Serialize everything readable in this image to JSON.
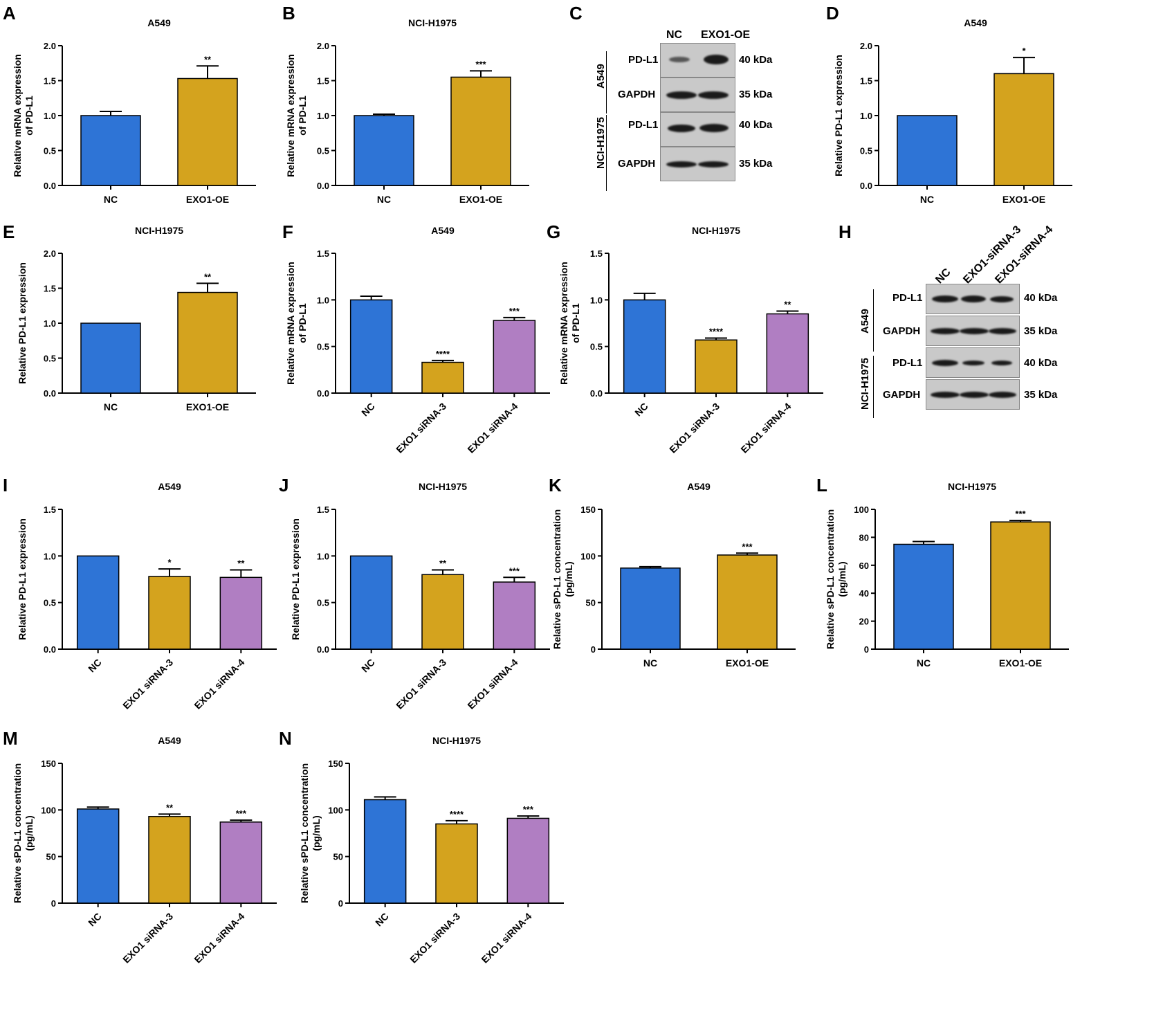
{
  "colors": {
    "blue": "#2e74d6",
    "gold": "#d4a31e",
    "purple": "#b07ec2"
  },
  "panel_letters": [
    "A",
    "B",
    "C",
    "D",
    "E",
    "F",
    "G",
    "H",
    "I",
    "J",
    "K",
    "L",
    "M",
    "N"
  ],
  "blot_C": {
    "lanes": [
      "NC",
      "EXO1-OE"
    ],
    "groups": [
      {
        "cell": "A549",
        "rows": [
          {
            "protein": "PD-L1",
            "size": "40 kDa"
          },
          {
            "protein": "GAPDH",
            "size": "35 kDa"
          }
        ]
      },
      {
        "cell": "NCI-H1975",
        "rows": [
          {
            "protein": "PD-L1",
            "size": "40 kDa"
          },
          {
            "protein": "GAPDH",
            "size": "35 kDa"
          }
        ]
      }
    ]
  },
  "blot_H": {
    "lanes": [
      "NC",
      "EXO1-siRNA-3",
      "EXO1-siRNA-4"
    ],
    "groups": [
      {
        "cell": "A549",
        "rows": [
          {
            "protein": "PD-L1",
            "size": "40 kDa"
          },
          {
            "protein": "GAPDH",
            "size": "35 kDa"
          }
        ]
      },
      {
        "cell": "NCI-H1975",
        "rows": [
          {
            "protein": "PD-L1",
            "size": "40 kDa"
          },
          {
            "protein": "GAPDH",
            "size": "35 kDa"
          }
        ]
      }
    ]
  },
  "chart_data": [
    {
      "id": "A",
      "type": "bar",
      "title": "A549",
      "ylabel": [
        "Relative mRNA expression",
        "of PD-L1"
      ],
      "categories": [
        "NC",
        "EXO1-OE"
      ],
      "values": [
        1.0,
        1.53
      ],
      "errors": [
        0.06,
        0.18
      ],
      "sig": [
        "",
        "**"
      ],
      "ylim": [
        0,
        2.0
      ],
      "yticks": [
        "0.0",
        "0.5",
        "1.0",
        "1.5",
        "2.0"
      ],
      "rotate": false
    },
    {
      "id": "B",
      "type": "bar",
      "title": "NCI-H1975",
      "ylabel": [
        "Relative mRNA expression",
        "of PD-L1"
      ],
      "categories": [
        "NC",
        "EXO1-OE"
      ],
      "values": [
        1.0,
        1.55
      ],
      "errors": [
        0.02,
        0.09
      ],
      "sig": [
        "",
        "***"
      ],
      "ylim": [
        0,
        2.0
      ],
      "yticks": [
        "0.0",
        "0.5",
        "1.0",
        "1.5",
        "2.0"
      ],
      "rotate": false
    },
    {
      "id": "D",
      "type": "bar",
      "title": "A549",
      "ylabel": [
        "Relative PD-L1 expression"
      ],
      "categories": [
        "NC",
        "EXO1-OE"
      ],
      "values": [
        1.0,
        1.6
      ],
      "errors": [
        0,
        0.23
      ],
      "sig": [
        "",
        "*"
      ],
      "ylim": [
        0,
        2.0
      ],
      "yticks": [
        "0.0",
        "0.5",
        "1.0",
        "1.5",
        "2.0"
      ],
      "rotate": false
    },
    {
      "id": "E",
      "type": "bar",
      "title": "NCI-H1975",
      "ylabel": [
        "Relative PD-L1 expression"
      ],
      "categories": [
        "NC",
        "EXO1-OE"
      ],
      "values": [
        1.0,
        1.44
      ],
      "errors": [
        0,
        0.13
      ],
      "sig": [
        "",
        "**"
      ],
      "ylim": [
        0,
        2.0
      ],
      "yticks": [
        "0.0",
        "0.5",
        "1.0",
        "1.5",
        "2.0"
      ],
      "rotate": false
    },
    {
      "id": "F",
      "type": "bar",
      "title": "A549",
      "ylabel": [
        "Relative mRNA expression",
        "of PD-L1"
      ],
      "categories": [
        "NC",
        "EXO1 siRNA-3",
        "EXO1 siRNA-4"
      ],
      "values": [
        1.0,
        0.33,
        0.78
      ],
      "errors": [
        0.04,
        0.02,
        0.03
      ],
      "sig": [
        "",
        "****",
        "***"
      ],
      "ylim": [
        0,
        1.5
      ],
      "yticks": [
        "0.0",
        "0.5",
        "1.0",
        "1.5"
      ],
      "rotate": true
    },
    {
      "id": "G",
      "type": "bar",
      "title": "NCI-H1975",
      "ylabel": [
        "Relative mRNA expression",
        "of PD-L1"
      ],
      "categories": [
        "NC",
        "EXO1 siRNA-3",
        "EXO1 siRNA-4"
      ],
      "values": [
        1.0,
        0.57,
        0.85
      ],
      "errors": [
        0.07,
        0.02,
        0.03
      ],
      "sig": [
        "",
        "****",
        "**"
      ],
      "ylim": [
        0,
        1.5
      ],
      "yticks": [
        "0.0",
        "0.5",
        "1.0",
        "1.5"
      ],
      "rotate": true
    },
    {
      "id": "I",
      "type": "bar",
      "title": "A549",
      "ylabel": [
        "Relative PD-L1 expression"
      ],
      "categories": [
        "NC",
        "EXO1 siRNA-3",
        "EXO1 siRNA-4"
      ],
      "values": [
        1.0,
        0.78,
        0.77
      ],
      "errors": [
        0,
        0.08,
        0.08
      ],
      "sig": [
        "",
        "*",
        "**"
      ],
      "ylim": [
        0,
        1.5
      ],
      "yticks": [
        "0.0",
        "0.5",
        "1.0",
        "1.5"
      ],
      "rotate": true
    },
    {
      "id": "J",
      "type": "bar",
      "title": "NCI-H1975",
      "ylabel": [
        "Relative PD-L1 expression"
      ],
      "categories": [
        "NC",
        "EXO1 siRNA-3",
        "EXO1 siRNA-4"
      ],
      "values": [
        1.0,
        0.8,
        0.72
      ],
      "errors": [
        0,
        0.05,
        0.05
      ],
      "sig": [
        "",
        "**",
        "***"
      ],
      "ylim": [
        0,
        1.5
      ],
      "yticks": [
        "0.0",
        "0.5",
        "1.0",
        "1.5"
      ],
      "rotate": true
    },
    {
      "id": "K",
      "type": "bar",
      "title": "A549",
      "ylabel": [
        "Relative sPD-L1 concentration",
        "(pg/mL)"
      ],
      "categories": [
        "NC",
        "EXO1-OE"
      ],
      "values": [
        87,
        101
      ],
      "errors": [
        1.5,
        2
      ],
      "sig": [
        "",
        "***"
      ],
      "ylim": [
        0,
        150
      ],
      "yticks": [
        "0",
        "50",
        "100",
        "150"
      ],
      "rotate": false
    },
    {
      "id": "L",
      "type": "bar",
      "title": "NCI-H1975",
      "ylabel": [
        "Relative sPD-L1 concentration",
        "(pg/mL)"
      ],
      "categories": [
        "NC",
        "EXO1-OE"
      ],
      "values": [
        75,
        91
      ],
      "errors": [
        2,
        1
      ],
      "sig": [
        "",
        "***"
      ],
      "ylim": [
        0,
        100
      ],
      "yticks": [
        "0",
        "20",
        "40",
        "60",
        "80",
        "100"
      ],
      "rotate": false
    },
    {
      "id": "M",
      "type": "bar",
      "title": "A549",
      "ylabel": [
        "Relative sPD-L1 concentration",
        "(pg/mL)"
      ],
      "categories": [
        "NC",
        "EXO1 siRNA-3",
        "EXO1 siRNA-4"
      ],
      "values": [
        101,
        93,
        87
      ],
      "errors": [
        2,
        2.5,
        2
      ],
      "sig": [
        "",
        "**",
        "***"
      ],
      "ylim": [
        0,
        150
      ],
      "yticks": [
        "0",
        "50",
        "100",
        "150"
      ],
      "rotate": true
    },
    {
      "id": "N",
      "type": "bar",
      "title": "NCI-H1975",
      "ylabel": [
        "Relative sPD-L1 concentration",
        "(pg/mL)"
      ],
      "categories": [
        "NC",
        "EXO1 siRNA-3",
        "EXO1 siRNA-4"
      ],
      "values": [
        111,
        85,
        91
      ],
      "errors": [
        3,
        3.5,
        2.5
      ],
      "sig": [
        "",
        "****",
        "***"
      ],
      "ylim": [
        0,
        150
      ],
      "yticks": [
        "0",
        "50",
        "100",
        "150"
      ],
      "rotate": true
    }
  ]
}
